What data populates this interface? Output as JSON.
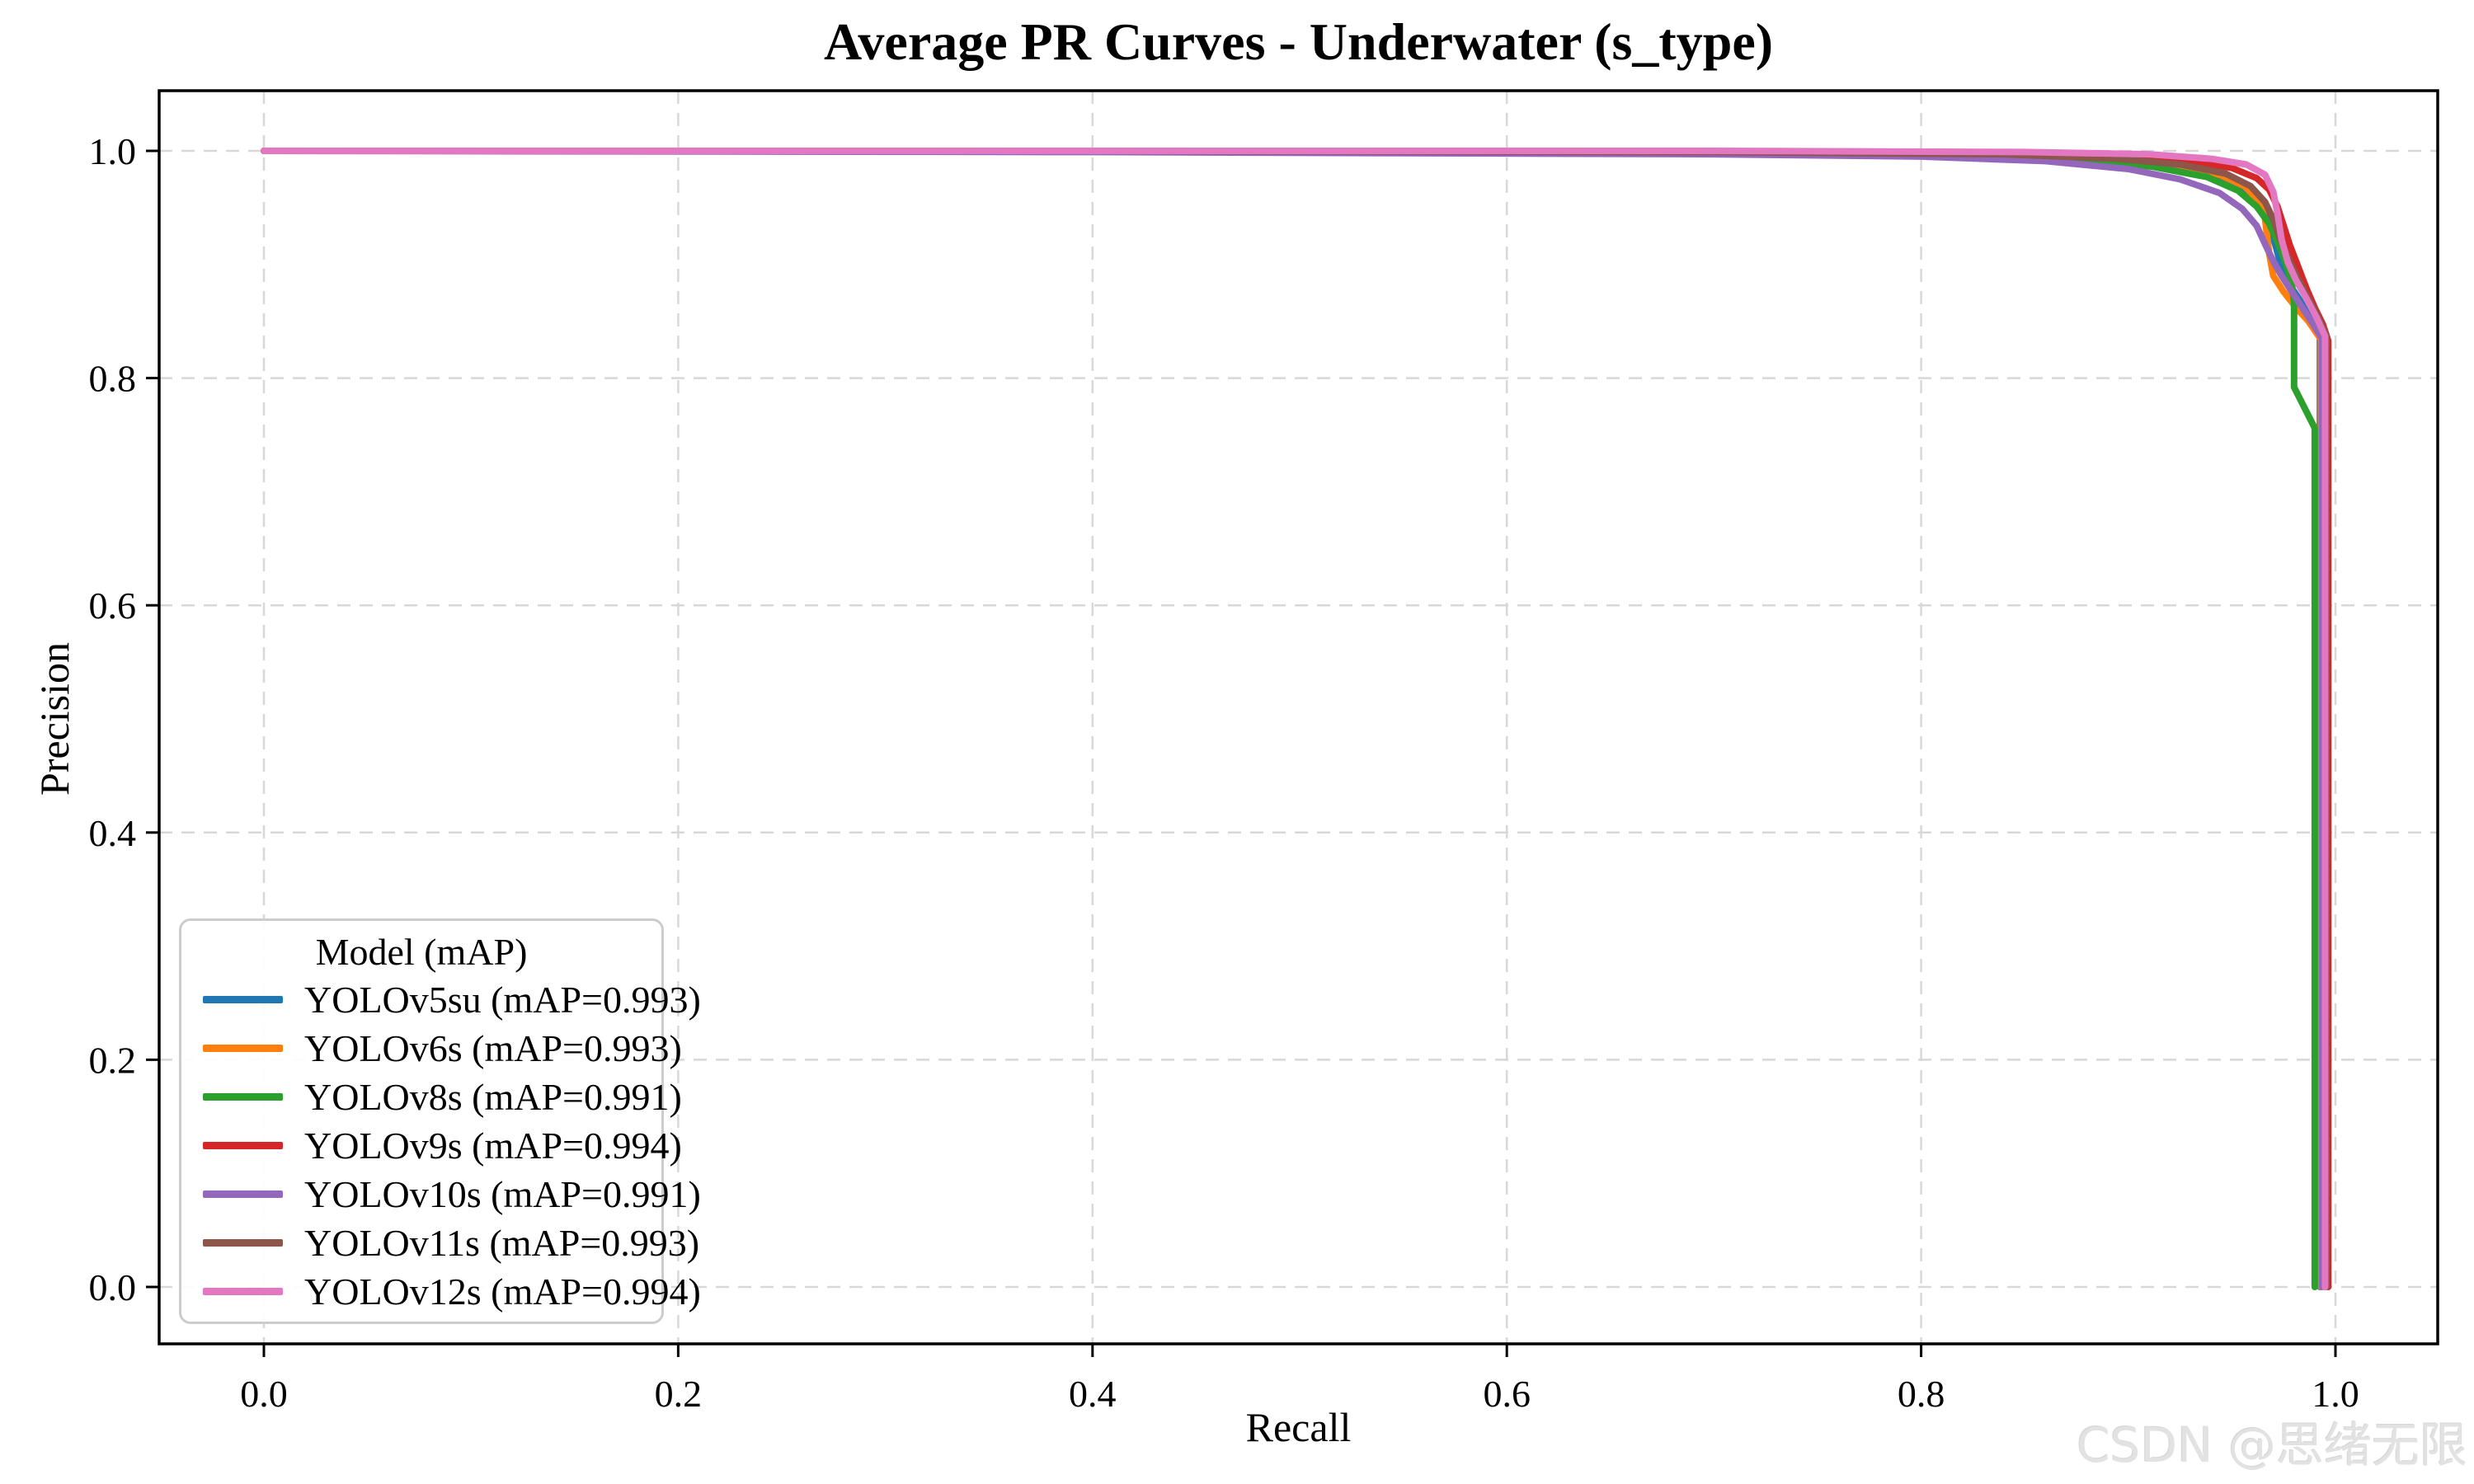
{
  "chart_data": {
    "type": "line",
    "title": "Average PR Curves - Underwater (s_type)",
    "xlabel": "Recall",
    "ylabel": "Precision",
    "xlim": [
      -0.05,
      1.05
    ],
    "ylim": [
      -0.053,
      1.053
    ],
    "xtick_values": [
      0.0,
      0.2,
      0.4,
      0.6,
      0.8,
      1.0
    ],
    "xtick_labels": [
      "0.0",
      "0.2",
      "0.4",
      "0.6",
      "0.8",
      "1.0"
    ],
    "ytick_values": [
      0.0,
      0.2,
      0.4,
      0.6,
      0.8,
      1.0
    ],
    "ytick_labels": [
      "0.0",
      "0.2",
      "0.4",
      "0.6",
      "0.8",
      "1.0"
    ],
    "grid": true,
    "grid_color": "#d8d8d8",
    "axis_color": "#000000",
    "legend": {
      "title": "Model (mAP)",
      "position": "lower left"
    },
    "series": [
      {
        "name": "YOLOv5su",
        "mAP": 0.993,
        "label": "YOLOv5su (mAP=0.993)",
        "color": "#1f77b4",
        "points": [
          [
            0,
            1
          ],
          [
            0.4,
            1
          ],
          [
            0.7,
            0.999
          ],
          [
            0.82,
            0.997
          ],
          [
            0.88,
            0.994
          ],
          [
            0.91,
            0.99
          ],
          [
            0.935,
            0.983
          ],
          [
            0.95,
            0.973
          ],
          [
            0.958,
            0.962
          ],
          [
            0.964,
            0.95
          ],
          [
            0.968,
            0.936
          ],
          [
            0.971,
            0.917
          ],
          [
            0.974,
            0.897
          ],
          [
            0.978,
            0.882
          ],
          [
            0.983,
            0.868
          ],
          [
            0.988,
            0.853
          ],
          [
            0.9925,
            0.838
          ],
          [
            0.9925,
            0
          ]
        ]
      },
      {
        "name": "YOLOv6s",
        "mAP": 0.993,
        "label": "YOLOv6s (mAP=0.993)",
        "color": "#ff7f0e",
        "points": [
          [
            0,
            1
          ],
          [
            0.4,
            1
          ],
          [
            0.7,
            0.999
          ],
          [
            0.83,
            0.997
          ],
          [
            0.89,
            0.993
          ],
          [
            0.92,
            0.988
          ],
          [
            0.944,
            0.979
          ],
          [
            0.956,
            0.969
          ],
          [
            0.963,
            0.956
          ],
          [
            0.966,
            0.94
          ],
          [
            0.968,
            0.91
          ],
          [
            0.97,
            0.89
          ],
          [
            0.975,
            0.876
          ],
          [
            0.981,
            0.862
          ],
          [
            0.987,
            0.85
          ],
          [
            0.993,
            0.834
          ],
          [
            0.993,
            0
          ]
        ]
      },
      {
        "name": "YOLOv8s",
        "mAP": 0.991,
        "label": "YOLOv8s (mAP=0.991)",
        "color": "#2ca02c",
        "points": [
          [
            0,
            1
          ],
          [
            0.4,
            1
          ],
          [
            0.7,
            0.998
          ],
          [
            0.82,
            0.996
          ],
          [
            0.88,
            0.992
          ],
          [
            0.912,
            0.986
          ],
          [
            0.938,
            0.977
          ],
          [
            0.953,
            0.965
          ],
          [
            0.962,
            0.951
          ],
          [
            0.968,
            0.936
          ],
          [
            0.972,
            0.92
          ],
          [
            0.976,
            0.901
          ],
          [
            0.979,
            0.883
          ],
          [
            0.98,
            0.866
          ],
          [
            0.98,
            0.792
          ],
          [
            0.99,
            0.756
          ],
          [
            0.99,
            0
          ]
        ]
      },
      {
        "name": "YOLOv9s",
        "mAP": 0.994,
        "label": "YOLOv9s (mAP=0.994)",
        "color": "#d62728",
        "points": [
          [
            0,
            1
          ],
          [
            0.4,
            1
          ],
          [
            0.7,
            0.999
          ],
          [
            0.85,
            0.998
          ],
          [
            0.9,
            0.995
          ],
          [
            0.93,
            0.991
          ],
          [
            0.95,
            0.985
          ],
          [
            0.962,
            0.976
          ],
          [
            0.968,
            0.966
          ],
          [
            0.972,
            0.951
          ],
          [
            0.975,
            0.934
          ],
          [
            0.978,
            0.917
          ],
          [
            0.982,
            0.898
          ],
          [
            0.986,
            0.879
          ],
          [
            0.99,
            0.862
          ],
          [
            0.994,
            0.847
          ],
          [
            0.9965,
            0.833
          ],
          [
            0.9965,
            0
          ]
        ]
      },
      {
        "name": "YOLOv10s",
        "mAP": 0.991,
        "label": "YOLOv10s (mAP=0.991)",
        "color": "#9467bd",
        "points": [
          [
            0,
            1
          ],
          [
            0.4,
            0.999
          ],
          [
            0.7,
            0.997
          ],
          [
            0.8,
            0.995
          ],
          [
            0.86,
            0.991
          ],
          [
            0.9,
            0.984
          ],
          [
            0.925,
            0.975
          ],
          [
            0.944,
            0.963
          ],
          [
            0.955,
            0.949
          ],
          [
            0.962,
            0.934
          ],
          [
            0.966,
            0.918
          ],
          [
            0.97,
            0.903
          ],
          [
            0.974,
            0.89
          ],
          [
            0.979,
            0.876
          ],
          [
            0.984,
            0.862
          ],
          [
            0.989,
            0.848
          ],
          [
            0.9935,
            0.835
          ],
          [
            0.9935,
            0
          ]
        ]
      },
      {
        "name": "YOLOv11s",
        "mAP": 0.993,
        "label": "YOLOv11s (mAP=0.993)",
        "color": "#8c564b",
        "points": [
          [
            0,
            1
          ],
          [
            0.4,
            1
          ],
          [
            0.7,
            0.999
          ],
          [
            0.84,
            0.997
          ],
          [
            0.895,
            0.993
          ],
          [
            0.925,
            0.988
          ],
          [
            0.947,
            0.98
          ],
          [
            0.959,
            0.969
          ],
          [
            0.966,
            0.955
          ],
          [
            0.97,
            0.94
          ],
          [
            0.973,
            0.924
          ],
          [
            0.977,
            0.907
          ],
          [
            0.981,
            0.891
          ],
          [
            0.986,
            0.873
          ],
          [
            0.991,
            0.856
          ],
          [
            0.9955,
            0.838
          ],
          [
            0.9955,
            0
          ]
        ]
      },
      {
        "name": "YOLOv12s",
        "mAP": 0.994,
        "label": "YOLOv12s (mAP=0.994)",
        "color": "#e377c2",
        "points": [
          [
            0,
            1
          ],
          [
            0.4,
            1
          ],
          [
            0.7,
            1
          ],
          [
            0.85,
            0.999
          ],
          [
            0.91,
            0.997
          ],
          [
            0.94,
            0.993
          ],
          [
            0.957,
            0.988
          ],
          [
            0.966,
            0.979
          ],
          [
            0.97,
            0.964
          ],
          [
            0.972,
            0.945
          ],
          [
            0.974,
            0.922
          ],
          [
            0.977,
            0.902
          ],
          [
            0.981,
            0.886
          ],
          [
            0.986,
            0.87
          ],
          [
            0.991,
            0.853
          ],
          [
            0.995,
            0.837
          ],
          [
            0.995,
            0
          ]
        ]
      }
    ]
  },
  "watermark": {
    "text": "CSDN @思绪无限",
    "color": "#e2e2e2"
  }
}
